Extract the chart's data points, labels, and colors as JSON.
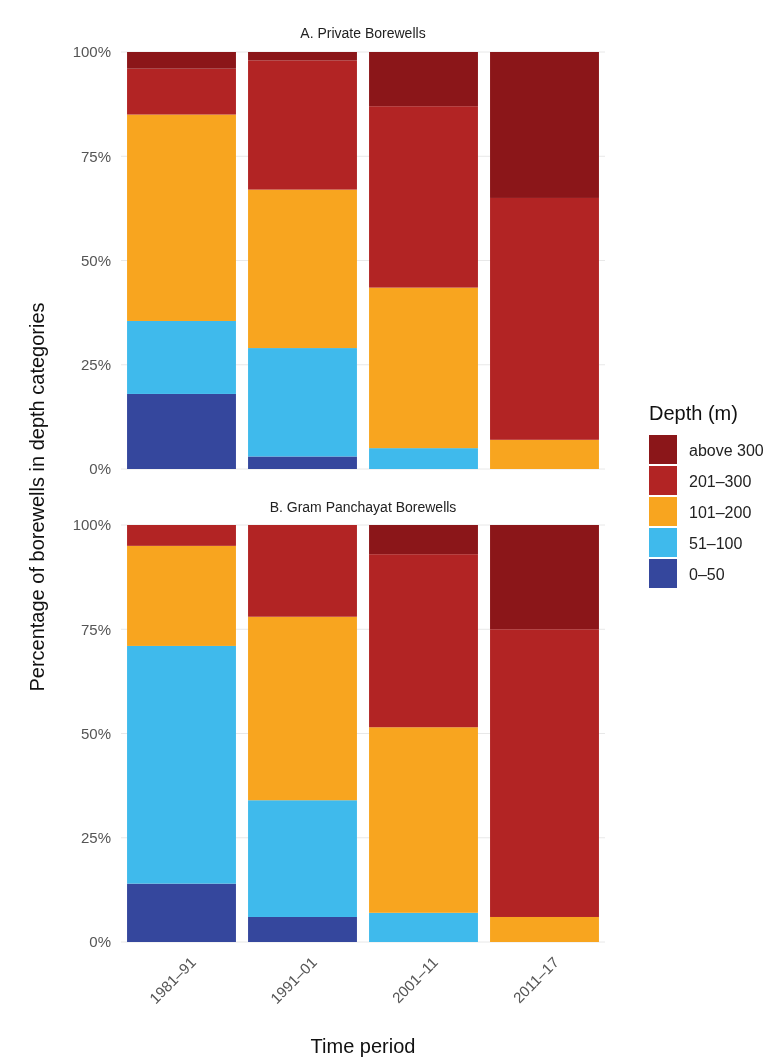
{
  "chart_data": [
    {
      "type": "bar",
      "title": "A. Private Borewells",
      "ylabel": "Percentage of borewells in depth categories",
      "legend_title": "Depth (m)",
      "legend": "right",
      "stacked": true,
      "grid": "y",
      "tick_labels": "y",
      "categories": [
        null,
        null,
        null,
        null
      ],
      "ylim": [
        0,
        100
      ],
      "yticks": [
        {
          "value": 0,
          "label": "0%"
        },
        {
          "value": 25,
          "label": "25%"
        },
        {
          "value": 50,
          "label": "50%"
        },
        {
          "value": 75,
          "label": "75%"
        },
        {
          "value": 100,
          "label": "100%"
        }
      ],
      "series": [
        {
          "name": "0–50",
          "color": "#35479d",
          "values": [
            18,
            3,
            0,
            0
          ]
        },
        {
          "name": "51–100",
          "color": "#3fbaec",
          "values": [
            17.5,
            26,
            5,
            0
          ]
        },
        {
          "name": "101–200",
          "color": "#f8a51f",
          "values": [
            49.5,
            38,
            38.5,
            7
          ]
        },
        {
          "name": "201–300",
          "color": "#b22424",
          "values": [
            11,
            31,
            43.5,
            58
          ]
        },
        {
          "name": "above 300",
          "color": "#8b1619",
          "values": [
            4,
            2,
            13,
            35
          ]
        }
      ]
    },
    {
      "type": "bar",
      "title": "B. Gram Panchayat Borewells",
      "xlabel": "Time period",
      "stacked": true,
      "grid": "y",
      "categories": [
        "1981–91",
        "1991–01",
        "2001–11",
        "2011–17"
      ],
      "ylim": [
        0,
        100
      ],
      "yticks": [
        {
          "value": 0,
          "label": "0%"
        },
        {
          "value": 25,
          "label": "25%"
        },
        {
          "value": 50,
          "label": "50%"
        },
        {
          "value": 75,
          "label": "75%"
        },
        {
          "value": 100,
          "label": "100%"
        }
      ],
      "series": [
        {
          "color": "#35479d",
          "values": [
            14,
            6,
            0,
            0
          ]
        },
        {
          "color": "#3fbaec",
          "values": [
            57,
            28,
            7,
            0
          ]
        },
        {
          "color": "#f8a51f",
          "values": [
            24,
            44,
            44.5,
            6
          ]
        },
        {
          "color": "#b22424",
          "values": [
            5,
            22,
            41.5,
            69
          ]
        },
        {
          "color": "#8b1619",
          "values": [
            0,
            0,
            7,
            25
          ]
        }
      ]
    }
  ]
}
